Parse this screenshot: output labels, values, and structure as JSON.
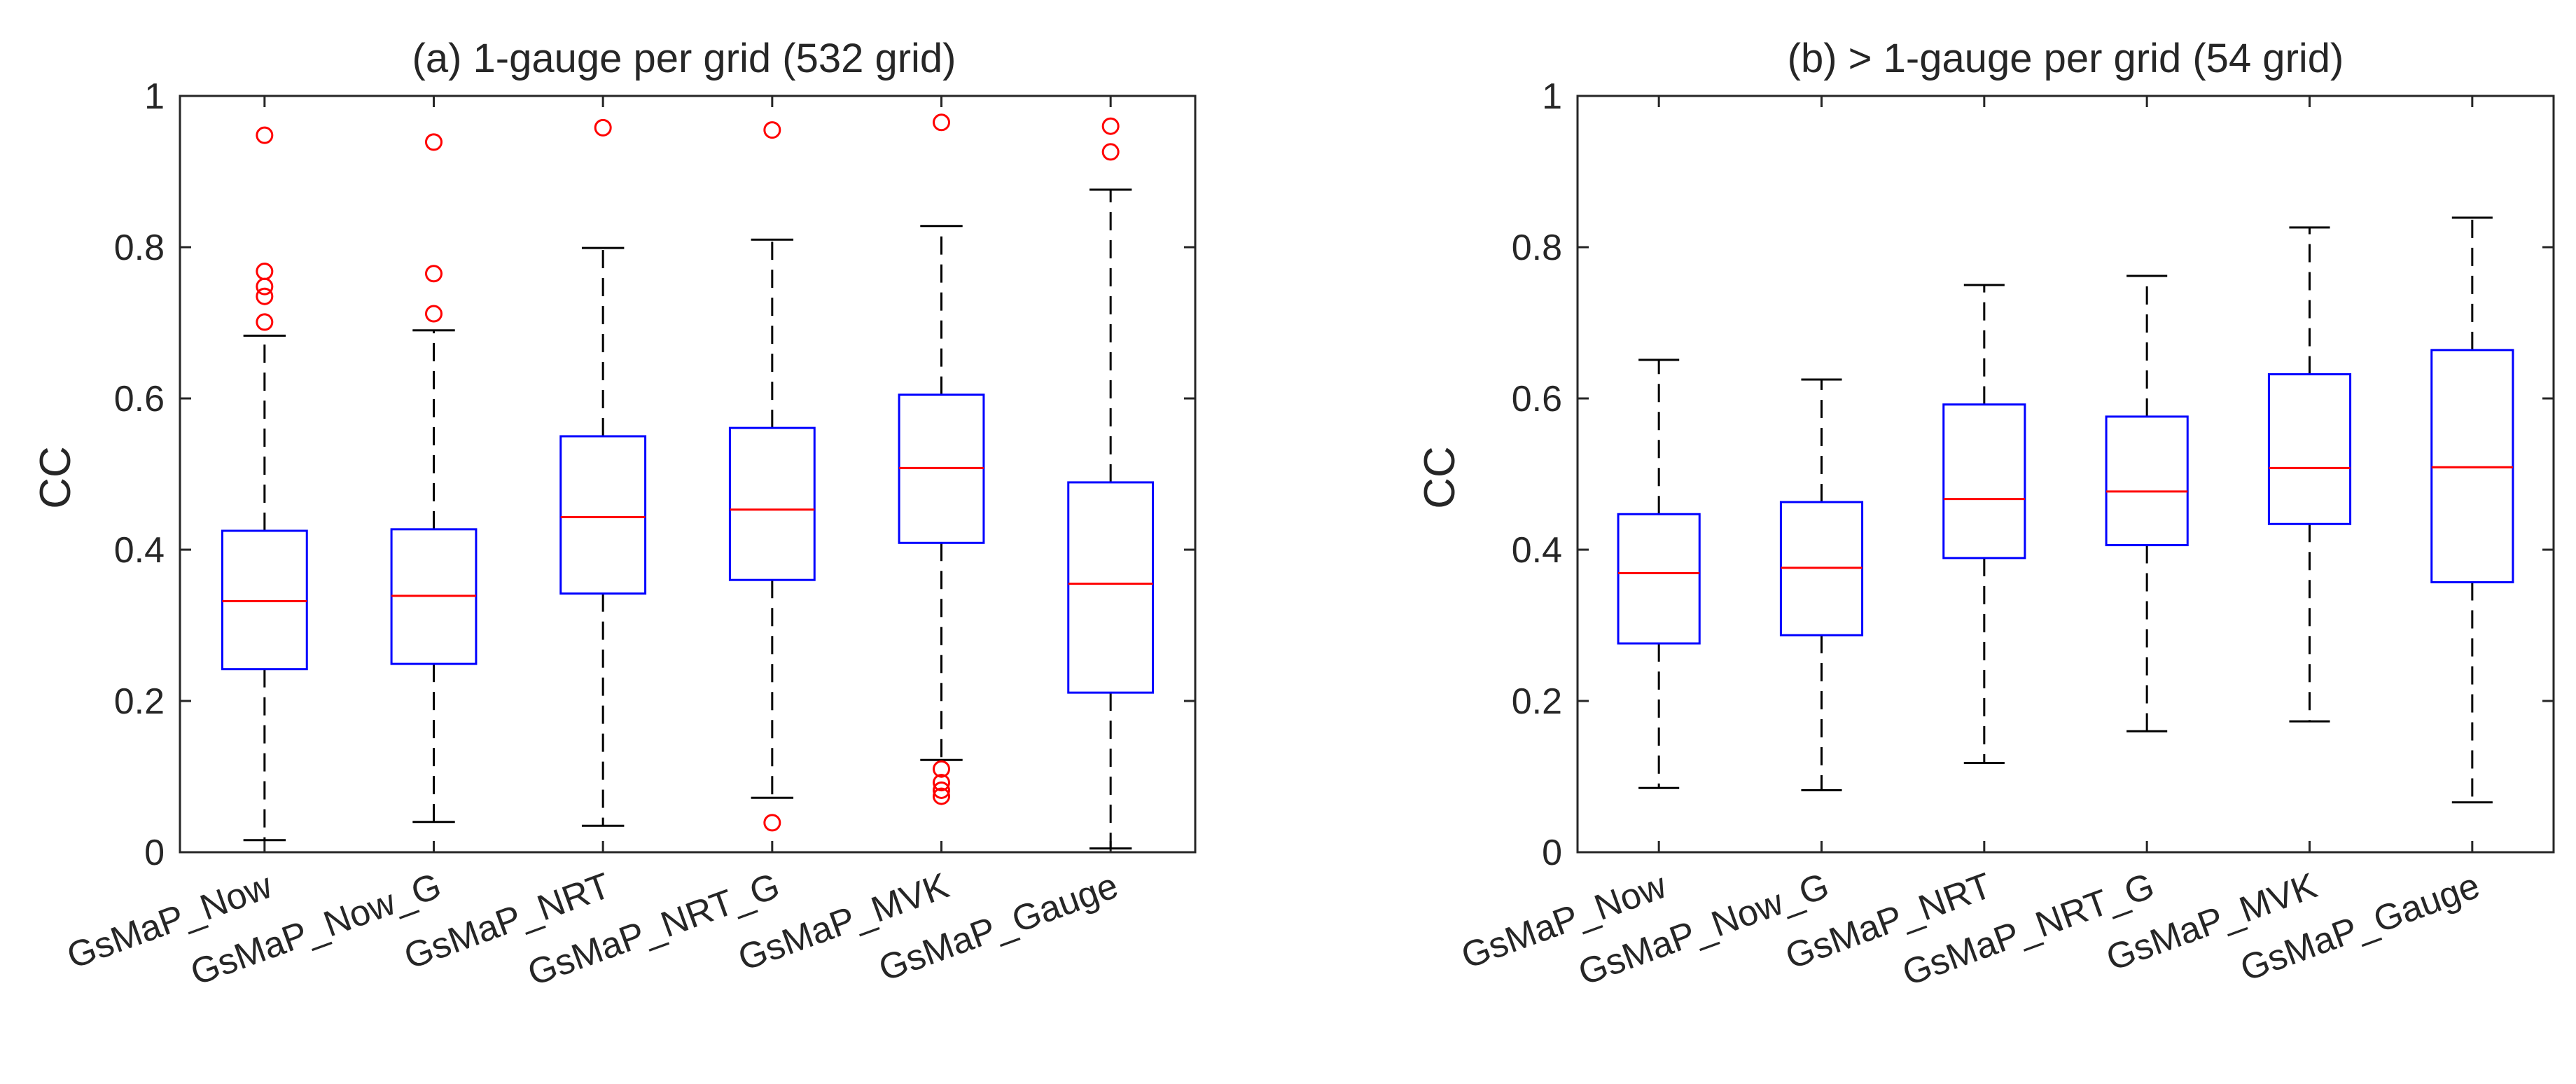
{
  "colors": {
    "box": "#0000ff",
    "median": "#ff0000",
    "outlier": "#ff0000",
    "whisker": "#000000",
    "axis": "#262626"
  },
  "chart_data": [
    {
      "type": "box",
      "title": "(a) 1-gauge per grid (532 grid)",
      "ylabel": "CC",
      "xlabel": "",
      "ylim": [
        0,
        1
      ],
      "yticks": [
        0,
        0.2,
        0.4,
        0.6,
        0.8,
        1
      ],
      "ytick_labels": [
        "0",
        "0.2",
        "0.4",
        "0.6",
        "0.8",
        "1"
      ],
      "categories": [
        "GsMaP_Now",
        "GsMaP_Now_G",
        "GsMaP_NRT",
        "GsMaP_NRT_G",
        "GsMaP_MVK",
        "GsMaP_Gauge"
      ],
      "boxes": [
        {
          "whisker_low": 0.016,
          "q1": 0.242,
          "median": 0.332,
          "q3": 0.425,
          "whisker_high": 0.683,
          "outliers": [
            0.948,
            0.768,
            0.748,
            0.735,
            0.701
          ]
        },
        {
          "whisker_low": 0.04,
          "q1": 0.249,
          "median": 0.339,
          "q3": 0.427,
          "whisker_high": 0.69,
          "outliers": [
            0.939,
            0.765,
            0.712
          ]
        },
        {
          "whisker_low": 0.035,
          "q1": 0.342,
          "median": 0.443,
          "q3": 0.55,
          "whisker_high": 0.799,
          "outliers": [
            0.958
          ]
        },
        {
          "whisker_low": 0.072,
          "q1": 0.36,
          "median": 0.453,
          "q3": 0.561,
          "whisker_high": 0.81,
          "outliers": [
            0.955,
            0.039
          ]
        },
        {
          "whisker_low": 0.122,
          "q1": 0.409,
          "median": 0.508,
          "q3": 0.605,
          "whisker_high": 0.828,
          "outliers": [
            0.965,
            0.11,
            0.092,
            0.082,
            0.074
          ]
        },
        {
          "whisker_low": 0.005,
          "q1": 0.211,
          "median": 0.355,
          "q3": 0.489,
          "whisker_high": 0.876,
          "outliers": [
            0.96,
            0.926
          ]
        }
      ]
    },
    {
      "type": "box",
      "title": "(b) > 1-gauge per grid (54 grid)",
      "ylabel": "CC",
      "xlabel": "",
      "ylim": [
        0,
        1
      ],
      "yticks": [
        0,
        0.2,
        0.4,
        0.6,
        0.8,
        1
      ],
      "ytick_labels": [
        "0",
        "0.2",
        "0.4",
        "0.6",
        "0.8",
        "1"
      ],
      "categories": [
        "GsMaP_Now",
        "GsMaP_Now_G",
        "GsMaP_NRT",
        "GsMaP_NRT_G",
        "GsMaP_MVK",
        "GsMaP_Gauge"
      ],
      "boxes": [
        {
          "whisker_low": 0.085,
          "q1": 0.276,
          "median": 0.369,
          "q3": 0.447,
          "whisker_high": 0.651,
          "outliers": []
        },
        {
          "whisker_low": 0.082,
          "q1": 0.287,
          "median": 0.376,
          "q3": 0.463,
          "whisker_high": 0.625,
          "outliers": []
        },
        {
          "whisker_low": 0.118,
          "q1": 0.389,
          "median": 0.467,
          "q3": 0.592,
          "whisker_high": 0.75,
          "outliers": []
        },
        {
          "whisker_low": 0.16,
          "q1": 0.406,
          "median": 0.477,
          "q3": 0.576,
          "whisker_high": 0.762,
          "outliers": []
        },
        {
          "whisker_low": 0.173,
          "q1": 0.434,
          "median": 0.508,
          "q3": 0.632,
          "whisker_high": 0.826,
          "outliers": []
        },
        {
          "whisker_low": 0.066,
          "q1": 0.357,
          "median": 0.509,
          "q3": 0.664,
          "whisker_high": 0.839,
          "outliers": []
        }
      ]
    }
  ]
}
